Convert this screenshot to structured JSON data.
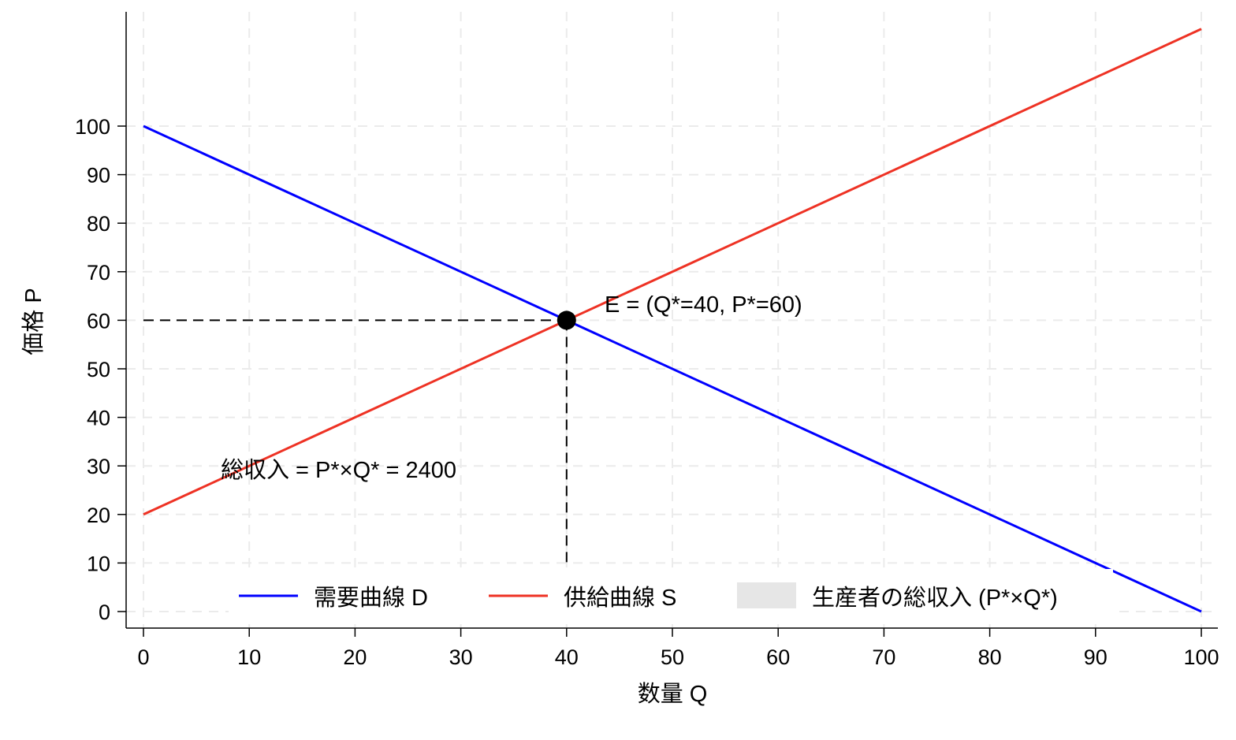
{
  "chart_data": {
    "type": "line",
    "title": "",
    "xlabel": "数量 Q",
    "ylabel": "価格 P",
    "xlim": [
      -1.6,
      101.6
    ],
    "ylim": [
      -3.4,
      123
    ],
    "xticks": [
      0,
      10,
      20,
      30,
      40,
      50,
      60,
      70,
      80,
      90,
      100
    ],
    "yticks": [
      0,
      10,
      20,
      30,
      40,
      50,
      60,
      70,
      80,
      90,
      100
    ],
    "grid": true,
    "series": [
      {
        "name": "需要曲線 D",
        "color": "#0000ff",
        "x": [
          0,
          100
        ],
        "y": [
          100,
          0
        ]
      },
      {
        "name": "供給曲線 S",
        "color": "#ee3224",
        "x": [
          0,
          100
        ],
        "y": [
          20,
          120
        ]
      }
    ],
    "shaded_area": {
      "name": "生産者の総収入 (P*×Q*)",
      "color": "#e6e6e6",
      "x": [
        0,
        40
      ],
      "y": [
        0,
        60
      ]
    },
    "equilibrium": {
      "q": 40,
      "p": 60,
      "label": "E = (Q*=40, P*=60)"
    },
    "annotation": "総収入 = P*×Q* = 2400",
    "legend": {
      "placement": "bottom",
      "entries": [
        "需要曲線 D",
        "供給曲線 S",
        "生産者の総収入 (P*×Q*)"
      ]
    }
  }
}
